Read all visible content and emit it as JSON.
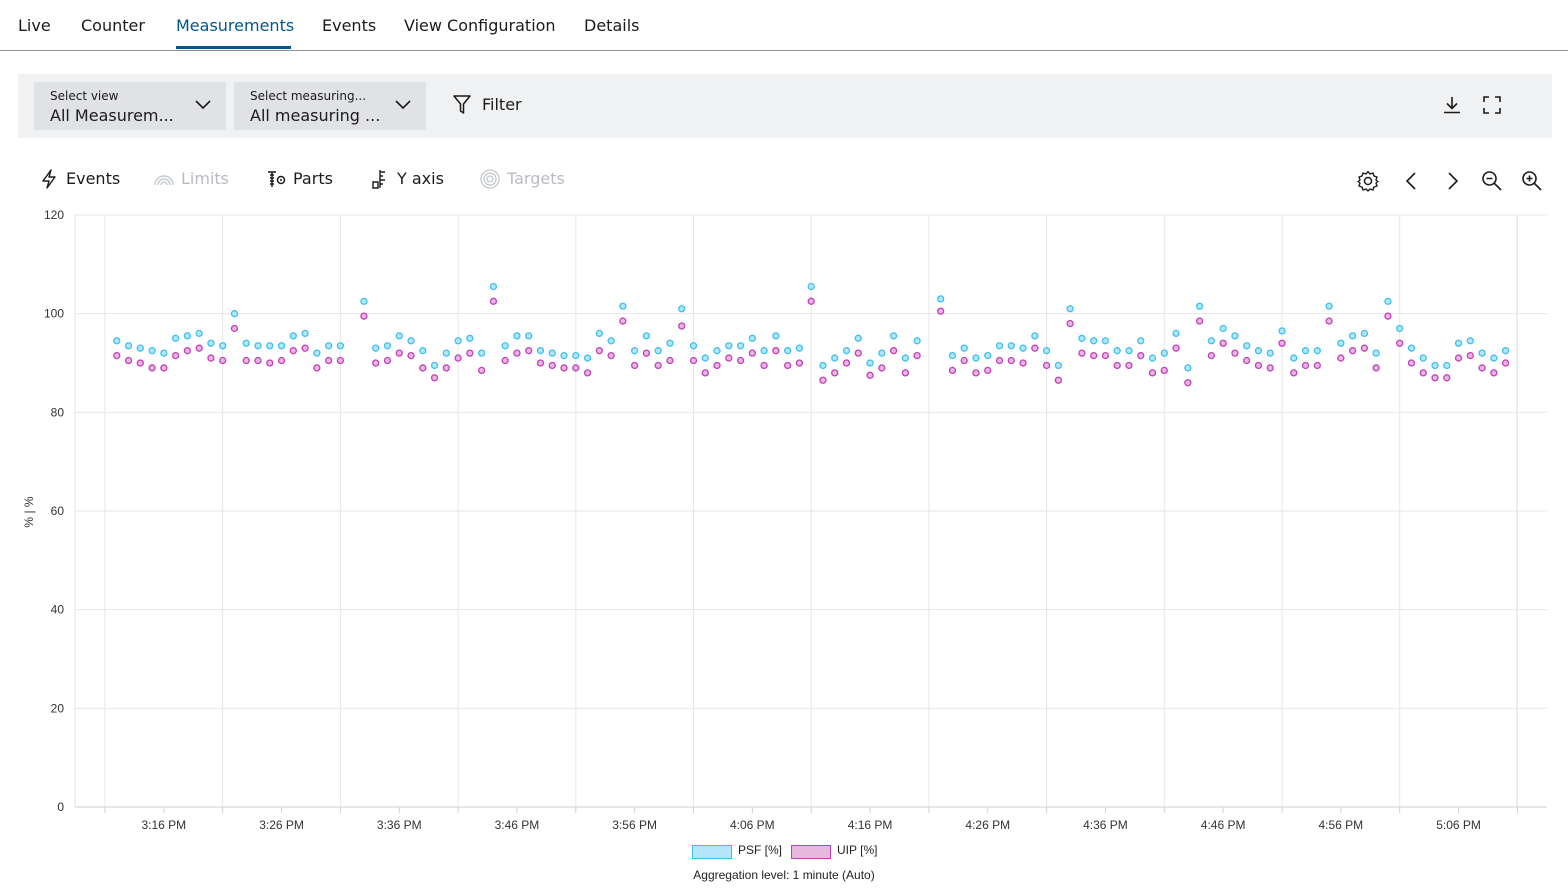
{
  "tabs": [
    "Live",
    "Counter",
    "Measurements",
    "Events",
    "View Configuration",
    "Details"
  ],
  "active_tab": "Measurements",
  "toolbar": {
    "select_view": {
      "label": "Select view",
      "value": "All Measurem..."
    },
    "select_measuring": {
      "label": "Select measuring...",
      "value": "All measuring ..."
    },
    "filter_label": "Filter",
    "download_icon": "download-icon",
    "fullscreen_icon": "fullscreen-icon"
  },
  "chart_controls": {
    "events": "Events",
    "limits": "Limits",
    "parts": "Parts",
    "y_axis": "Y axis",
    "targets": "Targets",
    "icons": [
      "settings-icon",
      "chevron-left-icon",
      "chevron-right-icon",
      "zoom-out-icon",
      "zoom-in-icon"
    ]
  },
  "colors": {
    "accent": "#005691",
    "psf": "#3fc0ee",
    "uip": "#c43fba"
  },
  "legend": {
    "psf": "PSF [%]",
    "uip": "UIP [%]"
  },
  "aggregation": "Aggregation level: 1 minute (Auto)",
  "chart_data": {
    "type": "scatter",
    "ylabel": "% | %",
    "ylim": [
      0,
      120
    ],
    "yticks": [
      0,
      20,
      40,
      60,
      80,
      100,
      120
    ],
    "x_tick_labels": [
      "3:16 PM",
      "3:26 PM",
      "3:36 PM",
      "3:46 PM",
      "3:56 PM",
      "4:06 PM",
      "4:16 PM",
      "4:26 PM",
      "4:36 PM",
      "4:46 PM",
      "4:56 PM",
      "5:06 PM"
    ],
    "x_unit": "minutes from 3:06 PM",
    "xlim": [
      0,
      120
    ],
    "grid": true,
    "legend_position": "bottom",
    "series": [
      {
        "name": "PSF [%]",
        "x": [
          1,
          2,
          3,
          4,
          5,
          6,
          7,
          8,
          9,
          10,
          11,
          12,
          13,
          14,
          15,
          16,
          17,
          18,
          19,
          20,
          22,
          23,
          24,
          25,
          26,
          27,
          28,
          29,
          30,
          31,
          32,
          33,
          34,
          35,
          36,
          37,
          38,
          39,
          40,
          41,
          42,
          43,
          44,
          45,
          46,
          47,
          48,
          49,
          50,
          51,
          52,
          53,
          54,
          55,
          56,
          57,
          58,
          59,
          60,
          61,
          62,
          63,
          64,
          65,
          66,
          67,
          68,
          69,
          71,
          72,
          73,
          74,
          75,
          76,
          77,
          78,
          79,
          80,
          81,
          82,
          83,
          84,
          85,
          86,
          87,
          88,
          89,
          90,
          91,
          92,
          93,
          94,
          95,
          96,
          97,
          98,
          99,
          100,
          101,
          102,
          103,
          104,
          105,
          106,
          107,
          108,
          109,
          110,
          111,
          112,
          113,
          114,
          115,
          116,
          117,
          118,
          119
        ],
        "values": [
          94.5,
          93.5,
          93,
          92.5,
          92,
          95,
          95.5,
          96,
          94,
          93.5,
          100,
          94,
          93.5,
          93.5,
          93.5,
          95.5,
          96,
          92,
          93.5,
          93.5,
          102.5,
          93,
          93.5,
          95.5,
          94.5,
          92.5,
          89.5,
          92,
          94.5,
          95,
          92,
          105.5,
          93.5,
          95.5,
          95.5,
          92.5,
          92,
          91.5,
          91.5,
          91,
          96,
          94.5,
          101.5,
          92.5,
          95.5,
          92.5,
          94,
          101,
          93.5,
          91,
          92.5,
          93.5,
          93.5,
          95,
          92.5,
          95.5,
          92.5,
          93,
          105.5,
          89.5,
          91,
          92.5,
          95,
          90,
          92,
          95.5,
          91,
          94.5,
          103,
          91.5,
          93,
          91,
          91.5,
          93.5,
          93.5,
          93,
          95.5,
          92.5,
          89.5,
          101,
          95,
          94.5,
          94.5,
          92.5,
          92.5,
          94.5,
          91,
          92,
          96,
          89,
          101.5,
          94.5,
          97,
          95.5,
          93.5,
          92.5,
          92,
          96.5,
          91,
          92.5,
          92.5,
          101.5,
          94,
          95.5,
          96,
          92,
          102.5,
          97,
          93,
          91,
          89.5,
          89.5,
          94,
          94.5,
          92,
          91,
          92.5
        ]
      },
      {
        "name": "UIP [%]",
        "x": [
          1,
          2,
          3,
          4,
          5,
          6,
          7,
          8,
          9,
          10,
          11,
          12,
          13,
          14,
          15,
          16,
          17,
          18,
          19,
          20,
          22,
          23,
          24,
          25,
          26,
          27,
          28,
          29,
          30,
          31,
          32,
          33,
          34,
          35,
          36,
          37,
          38,
          39,
          40,
          41,
          42,
          43,
          44,
          45,
          46,
          47,
          48,
          49,
          50,
          51,
          52,
          53,
          54,
          55,
          56,
          57,
          58,
          59,
          60,
          61,
          62,
          63,
          64,
          65,
          66,
          67,
          68,
          69,
          71,
          72,
          73,
          74,
          75,
          76,
          77,
          78,
          79,
          80,
          81,
          82,
          83,
          84,
          85,
          86,
          87,
          88,
          89,
          90,
          91,
          92,
          93,
          94,
          95,
          96,
          97,
          98,
          99,
          100,
          101,
          102,
          103,
          104,
          105,
          106,
          107,
          108,
          109,
          110,
          111,
          112,
          113,
          114,
          115,
          116,
          117,
          118,
          119
        ],
        "values": [
          91.5,
          90.5,
          90,
          89,
          89,
          91.5,
          92.5,
          93,
          91,
          90.5,
          97,
          90.5,
          90.5,
          90,
          90.5,
          92.5,
          93,
          89,
          90.5,
          90.5,
          99.5,
          90,
          90.5,
          92,
          91.5,
          89,
          87,
          89,
          91,
          92,
          88.5,
          102.5,
          90.5,
          92,
          92.5,
          90,
          89.5,
          89,
          89,
          88,
          92.5,
          91.5,
          98.5,
          89.5,
          92,
          89.5,
          90.5,
          97.5,
          90.5,
          88,
          89.5,
          91,
          90.5,
          92,
          89.5,
          92.5,
          89.5,
          90,
          102.5,
          86.5,
          88,
          90,
          92,
          87.5,
          89,
          92.5,
          88,
          91.5,
          100.5,
          88.5,
          90.5,
          88,
          88.5,
          90.5,
          90.5,
          90,
          93,
          89.5,
          86.5,
          98,
          92,
          91.5,
          91.5,
          89.5,
          89.5,
          91.5,
          88,
          88.5,
          93,
          86,
          98.5,
          91.5,
          94,
          92,
          90.5,
          89.5,
          89,
          94,
          88,
          89.5,
          89.5,
          98.5,
          91,
          92.5,
          93,
          89,
          99.5,
          94,
          90,
          88,
          87,
          87,
          91,
          91.5,
          89,
          88,
          90
        ]
      }
    ]
  }
}
